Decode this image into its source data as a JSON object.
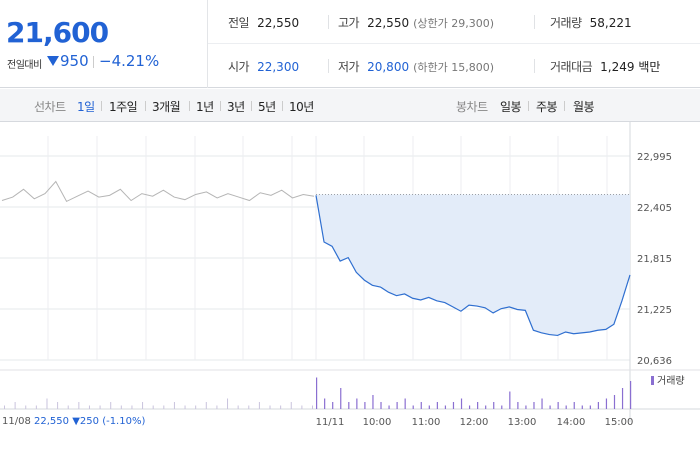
{
  "price": {
    "current": "21,600",
    "change_label": "전일대비",
    "change_abs": "950",
    "change_pct": "−4.21%"
  },
  "stats": {
    "prev_close": {
      "label": "전일",
      "value": "22,550"
    },
    "high": {
      "label": "고가",
      "value": "22,550",
      "sub": "(상한가 29,300)"
    },
    "volume": {
      "label": "거래량",
      "value": "58,221"
    },
    "open": {
      "label": "시가",
      "value": "22,300"
    },
    "low": {
      "label": "저가",
      "value": "20,800",
      "sub": "(하한가 15,800)"
    },
    "amount": {
      "label": "거래대금",
      "value": "1,249 백만"
    }
  },
  "tabs": {
    "line_header": "선차트",
    "line_tabs": [
      "1일",
      "1주일",
      "3개월",
      "1년",
      "3년",
      "5년",
      "10년"
    ],
    "candle_header": "봉차트",
    "candle_tabs": [
      "일봉",
      "주봉",
      "월봉"
    ],
    "active": "1일"
  },
  "legend": {
    "volume": "거래량"
  },
  "prev_day": {
    "date": "11/08",
    "close": "22,550",
    "change": "250",
    "pct": "(-1.10%)"
  },
  "chart_data": {
    "type": "line",
    "ylim": [
      20636,
      22995
    ],
    "y_ticks": [
      "22,995",
      "22,405",
      "21,815",
      "21,225",
      "20,636"
    ],
    "x_ticks": [
      "11/11",
      "10:00",
      "11:00",
      "12:00",
      "13:00",
      "14:00",
      "15:00"
    ],
    "reference_price": 22550,
    "colors": {
      "today": "#2f6fd0",
      "prev": "#b5b5b5",
      "fill": "#e3ecf9",
      "volume": "#8a6fd1"
    },
    "prev_series_y": [
      22480,
      22520,
      22610,
      22500,
      22560,
      22700,
      22470,
      22530,
      22590,
      22520,
      22540,
      22610,
      22480,
      22560,
      22530,
      22600,
      22520,
      22490,
      22550,
      22580,
      22510,
      22560,
      22520,
      22480,
      22570,
      22540,
      22600,
      22510,
      22550,
      22530
    ],
    "today_series_y": [
      22540,
      22000,
      21950,
      21780,
      21820,
      21650,
      21560,
      21500,
      21480,
      21420,
      21380,
      21400,
      21350,
      21330,
      21360,
      21320,
      21300,
      21250,
      21200,
      21270,
      21260,
      21240,
      21180,
      21230,
      21250,
      21220,
      21210,
      20980,
      20950,
      20930,
      20920,
      20960,
      20940,
      20950,
      20960,
      20980,
      20990,
      21050,
      21320,
      21620
    ],
    "volume_today": [
      9,
      3,
      2,
      6,
      2,
      3,
      2,
      4,
      2,
      1,
      2,
      3,
      1,
      2,
      1,
      2,
      1,
      2,
      3,
      1,
      2,
      1,
      2,
      1,
      5,
      2,
      1,
      2,
      3,
      1,
      2,
      1,
      2,
      1,
      1,
      2,
      3,
      4,
      6,
      8
    ],
    "volume_prev": [
      1,
      2,
      1,
      1,
      3,
      2,
      1,
      2,
      1,
      1,
      2,
      1,
      1,
      2,
      1,
      1,
      2,
      1,
      1,
      2,
      1,
      3,
      1,
      1,
      2,
      1,
      1,
      2,
      1,
      1
    ]
  }
}
